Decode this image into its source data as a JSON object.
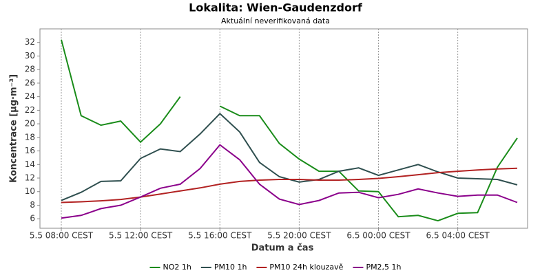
{
  "chart_data": {
    "type": "line",
    "title": "Lokalita: Wien-Gaudenzdorf",
    "subtitle": "Aktuální neverifikovaná data",
    "x_label": "Datum a čas",
    "y_label": "Koncentrace [µg·m⁻³]",
    "x": [
      "5.5 08:00 CEST",
      "5.5 09:00 CEST",
      "5.5 10:00 CEST",
      "5.5 11:00 CEST",
      "5.5 12:00 CEST",
      "5.5 13:00 CEST",
      "5.5 14:00 CEST",
      "5.5 15:00 CEST",
      "5.5 16:00 CEST",
      "5.5 17:00 CEST",
      "5.5 18:00 CEST",
      "5.5 19:00 CEST",
      "5.5 20:00 CEST",
      "5.5 21:00 CEST",
      "5.5 22:00 CEST",
      "5.5 23:00 CEST",
      "6.5 00:00 CEST",
      "6.5 01:00 CEST",
      "6.5 02:00 CEST",
      "6.5 03:00 CEST",
      "6.5 04:00 CEST",
      "6.5 05:00 CEST",
      "6.5 06:00 CEST",
      "6.5 07:00 CEST"
    ],
    "xticks": [
      "5.5 08:00 CEST",
      "5.5 12:00 CEST",
      "5.5 16:00 CEST",
      "5.5 20:00 CEST",
      "6.5 00:00 CEST",
      "6.5 04:00 CEST"
    ],
    "ylim": [
      4.6,
      34
    ],
    "yticks": [
      6,
      8,
      10,
      12,
      14,
      16,
      18,
      20,
      22,
      24,
      26,
      28,
      30,
      32
    ],
    "grid": "x",
    "legend": "bottom",
    "series": [
      {
        "name": "NO2 1h",
        "color": "#1a8c1a",
        "values": [
          32.4,
          21.2,
          19.8,
          20.4,
          17.3,
          20.0,
          24.0,
          null,
          22.6,
          21.2,
          21.2,
          17.1,
          14.8,
          13.0,
          13.0,
          10.1,
          10.0,
          6.3,
          6.5,
          5.7,
          6.8,
          6.9,
          13.6,
          17.9
        ]
      },
      {
        "name": "PM10 1h",
        "color": "#2f4f4f",
        "values": [
          8.7,
          9.9,
          11.5,
          11.6,
          14.9,
          16.3,
          15.9,
          18.5,
          21.5,
          18.8,
          14.3,
          12.2,
          11.4,
          11.8,
          13.0,
          13.5,
          12.4,
          13.2,
          14.0,
          12.9,
          12.0,
          11.9,
          11.8,
          11.0
        ]
      },
      {
        "name": "PM10 24h klouzavě",
        "color": "#b22222",
        "values": [
          8.4,
          8.5,
          8.65,
          8.85,
          9.2,
          9.65,
          10.1,
          10.55,
          11.1,
          11.5,
          11.7,
          11.8,
          11.8,
          11.7,
          11.7,
          11.8,
          11.95,
          12.2,
          12.5,
          12.8,
          13.0,
          13.2,
          13.35,
          13.45
        ]
      },
      {
        "name": "PM2,5 1h",
        "color": "#8b008b",
        "values": [
          6.1,
          6.5,
          7.5,
          8.0,
          9.2,
          10.5,
          11.1,
          13.4,
          16.9,
          14.7,
          11.1,
          8.9,
          8.1,
          8.7,
          9.8,
          9.9,
          9.1,
          9.6,
          10.4,
          9.8,
          9.3,
          9.5,
          9.5,
          8.4
        ]
      }
    ]
  }
}
